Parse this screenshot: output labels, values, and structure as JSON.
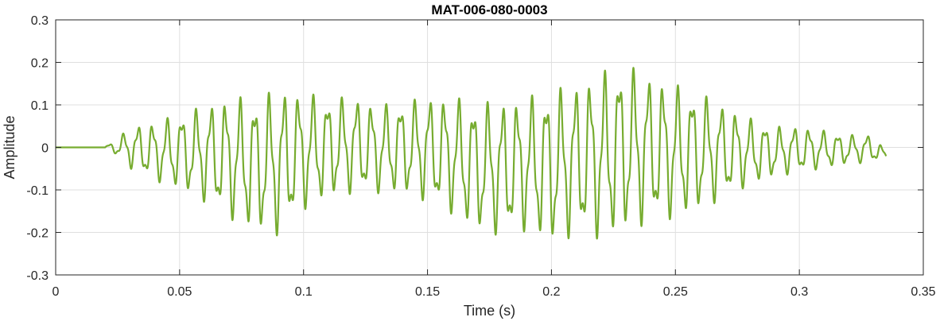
{
  "chart_data": {
    "type": "line",
    "title": "MAT-006-080-0003",
    "xlabel": "Time (s)",
    "ylabel": "Amplitude",
    "xlim": [
      0,
      0.35
    ],
    "ylim": [
      -0.3,
      0.3
    ],
    "grid": true,
    "xticks": [
      0,
      0.05,
      0.1,
      0.15,
      0.2,
      0.25,
      0.3,
      0.35
    ],
    "xtick_labels": [
      "0",
      "0.05",
      "0.1",
      "0.15",
      "0.2",
      "0.25",
      "0.3",
      "0.35"
    ],
    "yticks": [
      -0.3,
      -0.2,
      -0.1,
      0,
      0.1,
      0.2,
      0.3
    ],
    "ytick_labels": [
      "-0.3",
      "-0.2",
      "-0.1",
      "0",
      "0.1",
      "0.2",
      "0.3"
    ],
    "series": [
      {
        "color": "#77ac30",
        "x_range": [
          0,
          0.335
        ],
        "signal_onset": 0.02,
        "envelope": [
          {
            "t": 0.0,
            "max": 0.0,
            "min": 0.0
          },
          {
            "t": 0.02,
            "max": 0.003,
            "min": -0.003
          },
          {
            "t": 0.025,
            "max": 0.02,
            "min": -0.02
          },
          {
            "t": 0.03,
            "max": 0.05,
            "min": -0.05
          },
          {
            "t": 0.04,
            "max": 0.06,
            "min": -0.08
          },
          {
            "t": 0.05,
            "max": 0.08,
            "min": -0.1
          },
          {
            "t": 0.06,
            "max": 0.1,
            "min": -0.13
          },
          {
            "t": 0.07,
            "max": 0.12,
            "min": -0.17
          },
          {
            "t": 0.08,
            "max": 0.12,
            "min": -0.2
          },
          {
            "t": 0.09,
            "max": 0.14,
            "min": -0.21
          },
          {
            "t": 0.1,
            "max": 0.13,
            "min": -0.15
          },
          {
            "t": 0.11,
            "max": 0.12,
            "min": -0.12
          },
          {
            "t": 0.12,
            "max": 0.12,
            "min": -0.11
          },
          {
            "t": 0.13,
            "max": 0.1,
            "min": -0.11
          },
          {
            "t": 0.14,
            "max": 0.11,
            "min": -0.11
          },
          {
            "t": 0.15,
            "max": 0.12,
            "min": -0.13
          },
          {
            "t": 0.16,
            "max": 0.12,
            "min": -0.16
          },
          {
            "t": 0.17,
            "max": 0.11,
            "min": -0.2
          },
          {
            "t": 0.18,
            "max": 0.11,
            "min": -0.21
          },
          {
            "t": 0.19,
            "max": 0.12,
            "min": -0.2
          },
          {
            "t": 0.2,
            "max": 0.14,
            "min": -0.23
          },
          {
            "t": 0.21,
            "max": 0.15,
            "min": -0.21
          },
          {
            "t": 0.22,
            "max": 0.18,
            "min": -0.22
          },
          {
            "t": 0.23,
            "max": 0.2,
            "min": -0.2
          },
          {
            "t": 0.24,
            "max": 0.17,
            "min": -0.18
          },
          {
            "t": 0.25,
            "max": 0.15,
            "min": -0.17
          },
          {
            "t": 0.26,
            "max": 0.13,
            "min": -0.15
          },
          {
            "t": 0.27,
            "max": 0.1,
            "min": -0.12
          },
          {
            "t": 0.28,
            "max": 0.07,
            "min": -0.09
          },
          {
            "t": 0.29,
            "max": 0.05,
            "min": -0.07
          },
          {
            "t": 0.3,
            "max": 0.05,
            "min": -0.06
          },
          {
            "t": 0.31,
            "max": 0.04,
            "min": -0.05
          },
          {
            "t": 0.32,
            "max": 0.03,
            "min": -0.04
          },
          {
            "t": 0.33,
            "max": 0.03,
            "min": -0.035
          },
          {
            "t": 0.335,
            "max": -0.01,
            "min": -0.03
          }
        ]
      }
    ]
  }
}
